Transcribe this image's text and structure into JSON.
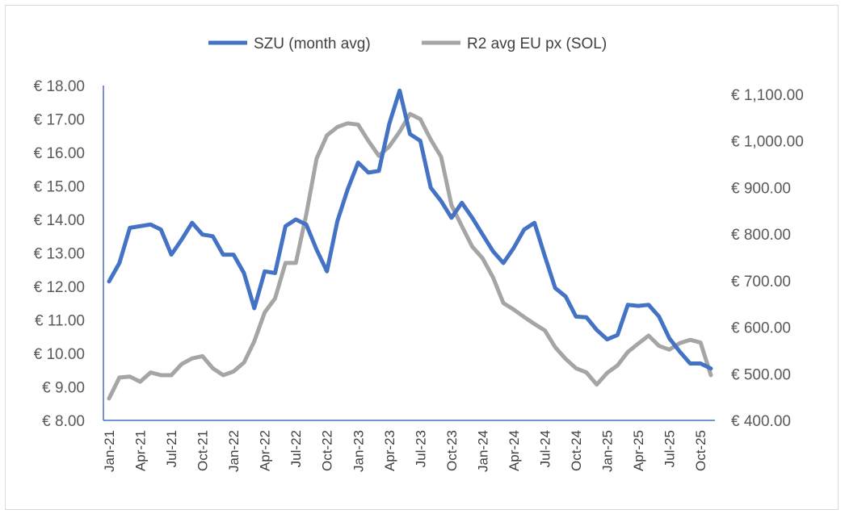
{
  "chart_data": {
    "type": "line",
    "title": "",
    "xlabel": "",
    "ylabel": "",
    "x": [
      "Jan-21",
      "Feb-21",
      "Mar-21",
      "Apr-21",
      "May-21",
      "Jun-21",
      "Jul-21",
      "Aug-21",
      "Sep-21",
      "Oct-21",
      "Nov-21",
      "Dec-21",
      "Jan-22",
      "Feb-22",
      "Mar-22",
      "Apr-22",
      "May-22",
      "Jun-22",
      "Jul-22",
      "Aug-22",
      "Sep-22",
      "Oct-22",
      "Nov-22",
      "Dec-22",
      "Jan-23",
      "Feb-23",
      "Mar-23",
      "Apr-23",
      "May-23",
      "Jun-23",
      "Jul-23",
      "Aug-23",
      "Sep-23",
      "Oct-23",
      "Nov-23",
      "Dec-23",
      "Jan-24",
      "Feb-24",
      "Mar-24",
      "Apr-24",
      "May-24",
      "Jun-24",
      "Jul-24",
      "Aug-24",
      "Sep-24",
      "Oct-24",
      "Nov-24",
      "Dec-24",
      "Jan-25",
      "Feb-25",
      "Mar-25",
      "Apr-25",
      "May-25",
      "Jun-25",
      "Jul-25",
      "Aug-25",
      "Sep-25",
      "Oct-25",
      "Nov-25"
    ],
    "x_tick_labels": [
      "Jan-21",
      "Apr-21",
      "Jul-21",
      "Oct-21",
      "Jan-22",
      "Apr-22",
      "Jul-22",
      "Oct-22",
      "Jan-23",
      "Apr-23",
      "Jul-23",
      "Oct-23",
      "Jan-24",
      "Apr-24",
      "Jul-24",
      "Oct-24",
      "Jan-25",
      "Apr-25",
      "Jul-25",
      "Oct-25"
    ],
    "y_left": {
      "range": [
        8,
        18
      ],
      "step": 1,
      "tick_labels": [
        "€ 8.00",
        "€ 9.00",
        "€ 10.00",
        "€ 11.00",
        "€ 12.00",
        "€ 13.00",
        "€ 14.00",
        "€ 15.00",
        "€ 16.00",
        "€ 17.00",
        "€ 18.00"
      ]
    },
    "y_right": {
      "range": [
        400,
        1100
      ],
      "step": 100,
      "tick_labels": [
        "€ 400.00",
        "€ 500.00",
        "€ 600.00",
        "€ 700.00",
        "€ 800.00",
        "€ 900.00",
        "€ 1,000.00",
        "€ 1,100.00"
      ]
    },
    "legend_position": "top-center",
    "series": [
      {
        "name": "SZU (month avg)",
        "axis": "left",
        "color": "#4472C4",
        "values": [
          12.15,
          12.7,
          13.75,
          13.8,
          13.85,
          13.7,
          12.95,
          13.4,
          13.9,
          13.55,
          13.5,
          12.95,
          12.95,
          12.4,
          11.35,
          12.45,
          12.4,
          13.8,
          14.0,
          13.85,
          13.1,
          12.45,
          13.95,
          14.9,
          15.7,
          15.4,
          15.45,
          16.85,
          17.85,
          16.55,
          16.35,
          14.95,
          14.55,
          14.05,
          14.5,
          14.05,
          13.55,
          13.05,
          12.7,
          13.15,
          13.7,
          13.9,
          12.9,
          11.95,
          11.7,
          11.1,
          11.08,
          10.7,
          10.42,
          10.55,
          11.45,
          11.42,
          11.45,
          11.1,
          10.45,
          10.05,
          9.7,
          9.7,
          9.55
        ]
      },
      {
        "name": "R2 avg EU px (SOL)",
        "axis": "right",
        "color": "#A5A5A5",
        "values": [
          447,
          492,
          494,
          483,
          503,
          497,
          497,
          521,
          533,
          538,
          512,
          497,
          505,
          524,
          570,
          632,
          662,
          738,
          738,
          842,
          962,
          1012,
          1030,
          1038,
          1035,
          1000,
          968,
          988,
          1020,
          1058,
          1047,
          1003,
          966,
          862,
          817,
          773,
          748,
          707,
          652,
          638,
          622,
          607,
          593,
          557,
          532,
          512,
          503,
          477,
          502,
          518,
          547,
          565,
          582,
          560,
          552,
          566,
          573,
          567,
          497
        ]
      }
    ]
  }
}
